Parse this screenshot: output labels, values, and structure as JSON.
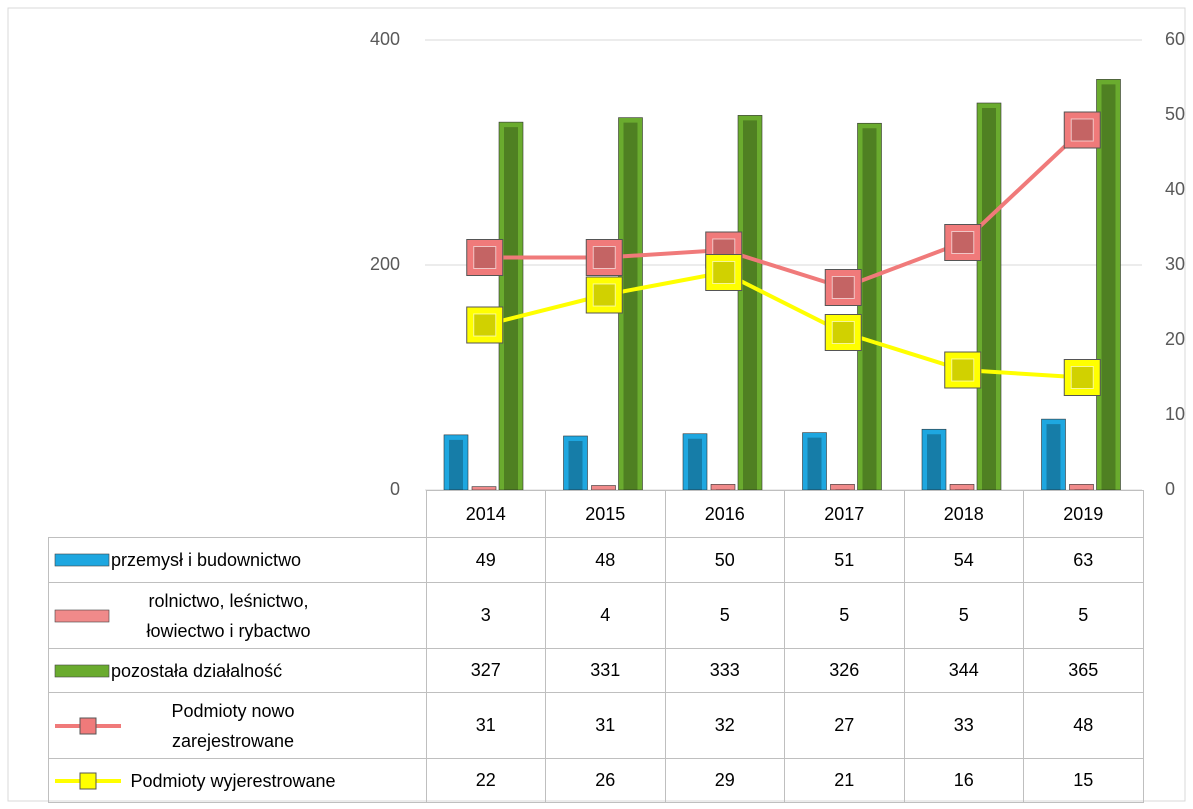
{
  "chart_data": {
    "type": "bar",
    "categories": [
      "2014",
      "2015",
      "2016",
      "2017",
      "2018",
      "2019"
    ],
    "series": [
      {
        "name": "przemysł i budownictwo",
        "color": "#1ea7e0",
        "values": [
          49,
          48,
          50,
          51,
          54,
          63
        ]
      },
      {
        "name": "rolnictwo, leśnictwo, łowiectwo i rybactwo",
        "color": "#f08a8a",
        "values": [
          3,
          4,
          5,
          5,
          5,
          5
        ]
      },
      {
        "name": "pozostała działalność",
        "color": "#6aab2e",
        "values": [
          327,
          331,
          333,
          326,
          344,
          365
        ]
      },
      {
        "name": "Podmioty nowo zarejestrowane",
        "color": "#f07a7a",
        "type": "line",
        "axis": "y2",
        "values": [
          31,
          31,
          32,
          27,
          33,
          48
        ]
      },
      {
        "name": "Podmioty wyjerestrowane",
        "color": "#ffff00",
        "type": "line",
        "axis": "y2",
        "values": [
          22,
          26,
          29,
          21,
          16,
          15
        ]
      }
    ],
    "ylim": [
      0,
      400
    ],
    "yticks": [
      0,
      200,
      400
    ],
    "y2lim": [
      0,
      60
    ],
    "y2ticks": [
      0,
      10,
      20,
      30,
      40,
      50,
      60
    ],
    "grid": true,
    "legend": "table"
  }
}
